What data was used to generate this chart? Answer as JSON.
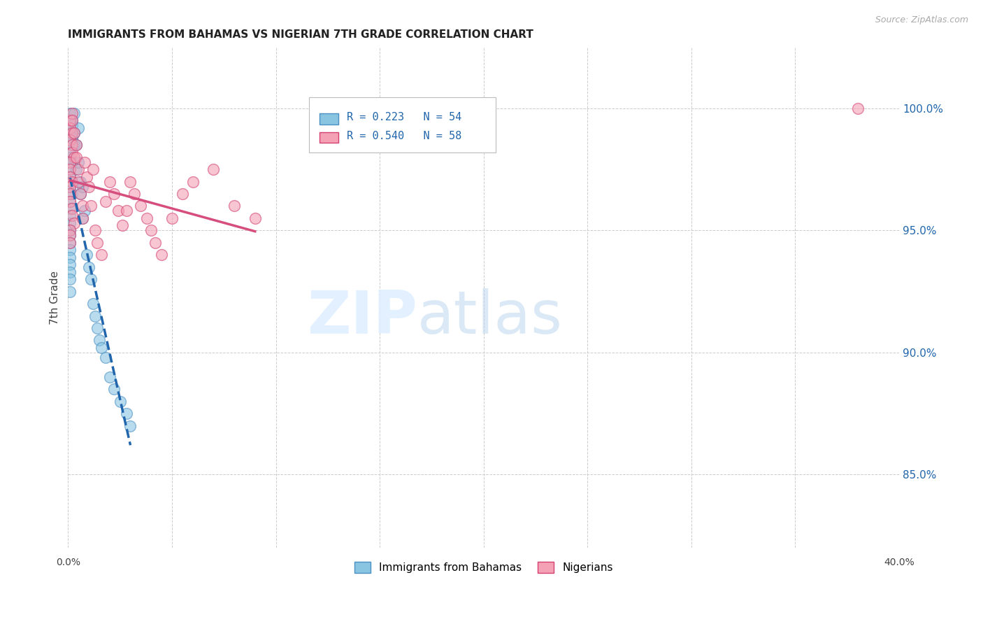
{
  "title": "IMMIGRANTS FROM BAHAMAS VS NIGERIAN 7TH GRADE CORRELATION CHART",
  "source": "Source: ZipAtlas.com",
  "ylabel": "7th Grade",
  "R_blue": 0.223,
  "N_blue": 54,
  "R_pink": 0.54,
  "N_pink": 58,
  "blue_color": "#89c4e1",
  "pink_color": "#f4a0b5",
  "trendline_blue": "#2166ac",
  "trendline_pink": "#d64e7e",
  "blue_edge": "#4a90c4",
  "pink_edge": "#d44070",
  "legend_blue": "Immigrants from Bahamas",
  "legend_pink": "Nigerians",
  "x_range": [
    0.0,
    0.4
  ],
  "y_range": [
    82.0,
    102.5
  ],
  "y_ticks": [
    85.0,
    90.0,
    95.0,
    100.0
  ],
  "y_tick_labels": [
    "85.0%",
    "90.0%",
    "95.0%",
    "100.0%"
  ],
  "blue_x": [
    0.001,
    0.001,
    0.002,
    0.001,
    0.002,
    0.003,
    0.001,
    0.001,
    0.002,
    0.001,
    0.001,
    0.001,
    0.001,
    0.002,
    0.001,
    0.001,
    0.001,
    0.001,
    0.001,
    0.001,
    0.001,
    0.001,
    0.001,
    0.001,
    0.001,
    0.001,
    0.001,
    0.002,
    0.002,
    0.003,
    0.003,
    0.004,
    0.004,
    0.005,
    0.005,
    0.006,
    0.006,
    0.007,
    0.007,
    0.008,
    0.009,
    0.01,
    0.011,
    0.012,
    0.013,
    0.014,
    0.015,
    0.016,
    0.018,
    0.02,
    0.022,
    0.025,
    0.028,
    0.03
  ],
  "blue_y": [
    99.8,
    99.5,
    99.3,
    99.0,
    98.8,
    98.5,
    98.2,
    98.0,
    97.8,
    97.5,
    97.2,
    97.0,
    96.8,
    96.5,
    96.2,
    95.9,
    95.6,
    95.3,
    95.0,
    94.8,
    94.5,
    94.2,
    93.9,
    93.6,
    93.3,
    93.0,
    92.5,
    99.5,
    98.8,
    99.8,
    99.0,
    98.5,
    97.5,
    99.2,
    97.8,
    97.0,
    96.5,
    96.8,
    95.5,
    95.8,
    94.0,
    93.5,
    93.0,
    92.0,
    91.5,
    91.0,
    90.5,
    90.2,
    89.8,
    89.0,
    88.5,
    88.0,
    87.5,
    87.0
  ],
  "pink_x": [
    0.001,
    0.001,
    0.002,
    0.001,
    0.002,
    0.002,
    0.003,
    0.001,
    0.001,
    0.001,
    0.002,
    0.001,
    0.001,
    0.001,
    0.002,
    0.002,
    0.003,
    0.001,
    0.001,
    0.001,
    0.002,
    0.002,
    0.003,
    0.004,
    0.004,
    0.005,
    0.005,
    0.006,
    0.007,
    0.007,
    0.008,
    0.009,
    0.01,
    0.011,
    0.012,
    0.013,
    0.014,
    0.016,
    0.018,
    0.02,
    0.022,
    0.024,
    0.026,
    0.028,
    0.03,
    0.032,
    0.035,
    0.038,
    0.04,
    0.042,
    0.045,
    0.05,
    0.055,
    0.06,
    0.07,
    0.08,
    0.09,
    0.38
  ],
  "pink_y": [
    99.5,
    99.2,
    99.0,
    98.7,
    98.5,
    98.2,
    98.0,
    97.8,
    97.5,
    97.2,
    97.0,
    96.8,
    96.5,
    96.2,
    95.9,
    95.6,
    95.3,
    95.0,
    94.8,
    94.5,
    99.8,
    99.5,
    99.0,
    98.5,
    98.0,
    97.5,
    97.0,
    96.5,
    96.0,
    95.5,
    97.8,
    97.2,
    96.8,
    96.0,
    97.5,
    95.0,
    94.5,
    94.0,
    96.2,
    97.0,
    96.5,
    95.8,
    95.2,
    95.8,
    97.0,
    96.5,
    96.0,
    95.5,
    95.0,
    94.5,
    94.0,
    95.5,
    96.5,
    97.0,
    97.5,
    96.0,
    95.5,
    100.0
  ]
}
